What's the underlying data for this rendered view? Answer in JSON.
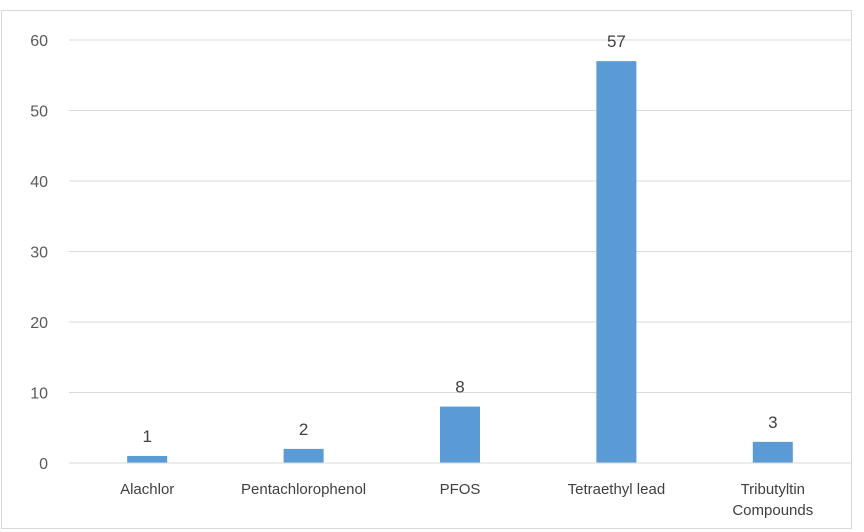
{
  "chart_data": {
    "type": "bar",
    "title": "",
    "xlabel": "",
    "ylabel": "",
    "categories": [
      [
        "Alachlor"
      ],
      [
        "Pentachlorophenol"
      ],
      [
        "PFOS"
      ],
      [
        "Tetraethyl lead"
      ],
      [
        "Tributyltin",
        "Compounds"
      ]
    ],
    "values": [
      1,
      2,
      8,
      57,
      3
    ],
    "data_labels": [
      "1",
      "2",
      "8",
      "57",
      "3"
    ],
    "ylim": [
      0,
      60
    ],
    "yticks": [
      "0",
      "10",
      "20",
      "30",
      "40",
      "50",
      "60"
    ],
    "grid": true,
    "legend": "none",
    "bar_color": "#5b9bd5",
    "grid_color": "#d9d9d9"
  }
}
